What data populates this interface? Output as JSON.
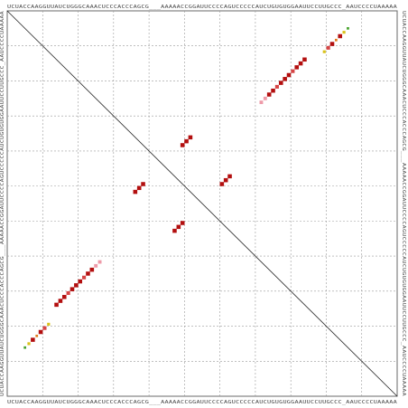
{
  "sequence": "UCUACCAAGGUUAUCUGGGCAAACUCCCACCCAGCG___AAAAACCGGAUUCCCCAGUCCCCCAUCUGUGUGGAAUUCCUUGCCC_AAUCCCCUAAAAA",
  "grid": {
    "divisions": 11,
    "line_color": "#9a9a9a"
  },
  "colors": {
    "strong": "#b30f0f",
    "medium": "#d64545",
    "weak": "#ee9aa8",
    "yellow": "#d9c21a",
    "green": "#46a32c",
    "orange": "#e07a1a"
  },
  "pairs": [
    {
      "i": 12,
      "j": 75,
      "level": "strong"
    },
    {
      "i": 13,
      "j": 74,
      "level": "strong"
    },
    {
      "i": 14,
      "j": 73,
      "level": "strong"
    },
    {
      "i": 15,
      "j": 72,
      "level": "medium"
    },
    {
      "i": 16,
      "j": 71,
      "level": "strong"
    },
    {
      "i": 17,
      "j": 70,
      "level": "strong"
    },
    {
      "i": 18,
      "j": 69,
      "level": "strong"
    },
    {
      "i": 19,
      "j": 68,
      "level": "medium"
    },
    {
      "i": 20,
      "j": 67,
      "level": "strong"
    },
    {
      "i": 21,
      "j": 66,
      "level": "strong"
    },
    {
      "i": 22,
      "j": 65,
      "level": "weak"
    },
    {
      "i": 23,
      "j": 64,
      "level": "weak"
    },
    {
      "i": 4,
      "j": 86,
      "level": "green"
    },
    {
      "i": 5,
      "j": 85,
      "level": "yellow"
    },
    {
      "i": 6,
      "j": 84,
      "level": "strong"
    },
    {
      "i": 7,
      "j": 83,
      "level": "orange"
    },
    {
      "i": 8,
      "j": 82,
      "level": "strong"
    },
    {
      "i": 9,
      "j": 81,
      "level": "medium"
    },
    {
      "i": 10,
      "j": 80,
      "level": "yellow"
    },
    {
      "i": 32,
      "j": 46,
      "level": "strong"
    },
    {
      "i": 33,
      "j": 45,
      "level": "strong"
    },
    {
      "i": 34,
      "j": 44,
      "level": "strong"
    },
    {
      "i": 42,
      "j": 56,
      "level": "strong"
    },
    {
      "i": 43,
      "j": 55,
      "level": "strong"
    },
    {
      "i": 44,
      "j": 54,
      "level": "strong"
    }
  ]
}
